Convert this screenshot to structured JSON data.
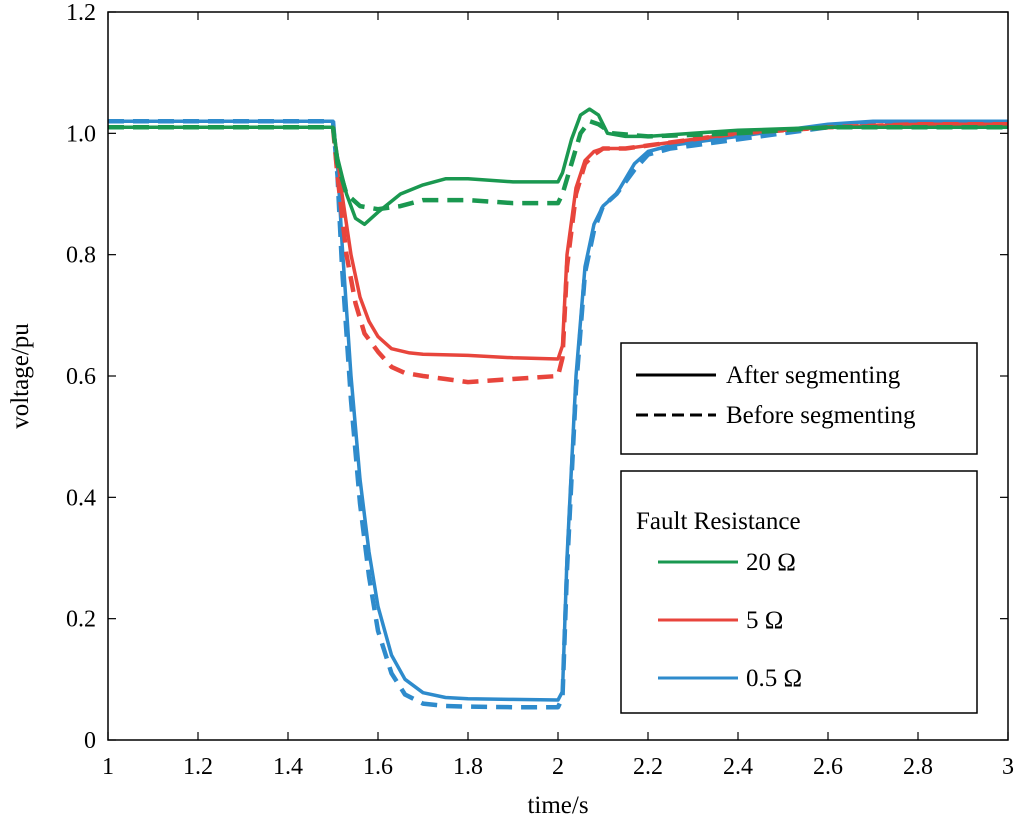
{
  "chart_data": {
    "type": "line",
    "xlabel": "time/s",
    "ylabel": "voltage/pu",
    "xlim": [
      1,
      3
    ],
    "ylim": [
      0,
      1.2
    ],
    "x_ticks": [
      1,
      1.2,
      1.4,
      1.6,
      1.8,
      2,
      2.2,
      2.4,
      2.6,
      2.8,
      3
    ],
    "x_tick_labels": [
      "1",
      "1.2",
      "1.4",
      "1.6",
      "1.8",
      "2",
      "2.2",
      "2.4",
      "2.6",
      "2.8",
      "3"
    ],
    "y_ticks": [
      0,
      0.2,
      0.4,
      0.6,
      0.8,
      1.0,
      1.2
    ],
    "y_tick_labels": [
      "0",
      "0.2",
      "0.4",
      "0.6",
      "0.8",
      "1.0",
      "1.2"
    ],
    "legend_style": {
      "placement": "center-right",
      "entries": [
        {
          "label": "After segmenting",
          "style": "solid"
        },
        {
          "label": "Before segmenting",
          "style": "dashed"
        }
      ]
    },
    "legend_resistance": {
      "placement": "bottom-right",
      "title": "Fault Resistance",
      "entries": [
        {
          "label": "20 Ω",
          "color": "#1a9850"
        },
        {
          "label": "5 Ω",
          "color": "#e8453c"
        },
        {
          "label": "0.5 Ω",
          "color": "#2e8bcc"
        }
      ]
    },
    "series": [
      {
        "resistance": "20 Ω",
        "style": "solid",
        "color": "#1a9850",
        "x": [
          1.0,
          1.5,
          1.51,
          1.53,
          1.55,
          1.57,
          1.6,
          1.65,
          1.7,
          1.75,
          1.8,
          1.9,
          2.0,
          2.01,
          2.03,
          2.05,
          2.07,
          2.09,
          2.11,
          2.15,
          2.2,
          2.3,
          2.4,
          2.6,
          2.8,
          3.0
        ],
        "y": [
          1.01,
          1.01,
          0.96,
          0.9,
          0.86,
          0.85,
          0.87,
          0.9,
          0.915,
          0.925,
          0.925,
          0.92,
          0.92,
          0.935,
          0.99,
          1.03,
          1.04,
          1.03,
          1.0,
          0.995,
          0.995,
          1.0,
          1.005,
          1.01,
          1.01,
          1.01
        ]
      },
      {
        "resistance": "20 Ω",
        "style": "dashed",
        "color": "#1a9850",
        "x": [
          1.0,
          1.5,
          1.51,
          1.53,
          1.56,
          1.6,
          1.65,
          1.7,
          1.8,
          1.9,
          2.0,
          2.01,
          2.03,
          2.05,
          2.07,
          2.09,
          2.12,
          2.2,
          2.4,
          2.6,
          2.8,
          3.0
        ],
        "y": [
          1.01,
          1.01,
          0.95,
          0.9,
          0.88,
          0.875,
          0.88,
          0.89,
          0.89,
          0.885,
          0.885,
          0.9,
          0.95,
          1.0,
          1.02,
          1.015,
          1.0,
          0.995,
          1.0,
          1.01,
          1.01,
          1.01
        ]
      },
      {
        "resistance": "5 Ω",
        "style": "solid",
        "color": "#e8453c",
        "x": [
          1.0,
          1.5,
          1.51,
          1.52,
          1.54,
          1.56,
          1.58,
          1.6,
          1.63,
          1.67,
          1.7,
          1.8,
          1.9,
          2.0,
          2.01,
          2.02,
          2.04,
          2.06,
          2.08,
          2.1,
          2.15,
          2.2,
          2.3,
          2.4,
          2.6,
          2.8,
          3.0
        ],
        "y": [
          1.01,
          1.01,
          0.96,
          0.9,
          0.8,
          0.73,
          0.69,
          0.665,
          0.645,
          0.638,
          0.636,
          0.634,
          0.63,
          0.628,
          0.65,
          0.8,
          0.91,
          0.955,
          0.97,
          0.975,
          0.975,
          0.98,
          0.99,
          1.0,
          1.01,
          1.015,
          1.015
        ]
      },
      {
        "resistance": "5 Ω",
        "style": "dashed",
        "color": "#e8453c",
        "x": [
          1.0,
          1.5,
          1.51,
          1.53,
          1.55,
          1.57,
          1.6,
          1.63,
          1.66,
          1.7,
          1.75,
          1.8,
          1.9,
          2.0,
          2.01,
          2.02,
          2.04,
          2.06,
          2.08,
          2.1,
          2.15,
          2.2,
          2.3,
          2.4,
          2.6,
          2.8,
          3.0
        ],
        "y": [
          1.01,
          1.01,
          0.93,
          0.8,
          0.72,
          0.67,
          0.64,
          0.615,
          0.605,
          0.6,
          0.595,
          0.59,
          0.595,
          0.6,
          0.63,
          0.78,
          0.9,
          0.95,
          0.965,
          0.975,
          0.975,
          0.98,
          0.99,
          1.0,
          1.01,
          1.015,
          1.015
        ]
      },
      {
        "resistance": "0.5 Ω",
        "style": "solid",
        "color": "#2e8bcc",
        "x": [
          1.0,
          1.5,
          1.51,
          1.52,
          1.54,
          1.56,
          1.58,
          1.6,
          1.63,
          1.66,
          1.7,
          1.75,
          1.8,
          1.9,
          2.0,
          2.01,
          2.02,
          2.04,
          2.06,
          2.08,
          2.1,
          2.13,
          2.17,
          2.2,
          2.25,
          2.3,
          2.4,
          2.5,
          2.6,
          2.7,
          2.8,
          2.9,
          3.0
        ],
        "y": [
          1.02,
          1.02,
          0.95,
          0.82,
          0.6,
          0.43,
          0.31,
          0.22,
          0.14,
          0.1,
          0.078,
          0.07,
          0.068,
          0.067,
          0.066,
          0.08,
          0.3,
          0.6,
          0.78,
          0.85,
          0.88,
          0.9,
          0.95,
          0.97,
          0.98,
          0.985,
          0.995,
          1.005,
          1.015,
          1.02,
          1.02,
          1.02,
          1.02
        ]
      },
      {
        "resistance": "0.5 Ω",
        "style": "dashed",
        "color": "#2e8bcc",
        "x": [
          1.0,
          1.5,
          1.51,
          1.52,
          1.54,
          1.56,
          1.58,
          1.6,
          1.63,
          1.66,
          1.7,
          1.75,
          1.8,
          1.9,
          2.0,
          2.01,
          2.02,
          2.04,
          2.06,
          2.08,
          2.1,
          2.13,
          2.17,
          2.2,
          2.25,
          2.3,
          2.4,
          2.5,
          2.6,
          2.7,
          2.8,
          2.9,
          3.0
        ],
        "y": [
          1.02,
          1.02,
          0.93,
          0.78,
          0.56,
          0.39,
          0.27,
          0.18,
          0.11,
          0.075,
          0.06,
          0.056,
          0.055,
          0.054,
          0.054,
          0.07,
          0.28,
          0.58,
          0.77,
          0.84,
          0.88,
          0.9,
          0.94,
          0.965,
          0.975,
          0.98,
          0.99,
          1.0,
          1.01,
          1.015,
          1.015,
          1.015,
          1.015
        ]
      }
    ]
  }
}
